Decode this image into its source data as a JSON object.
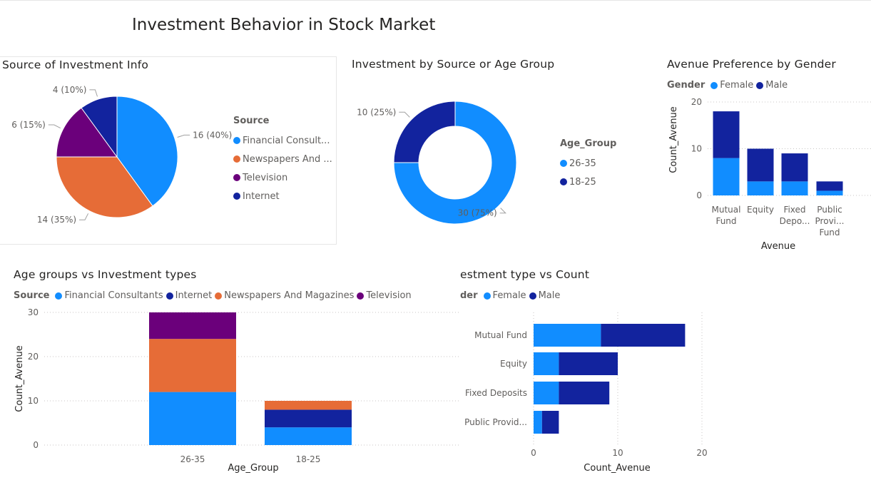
{
  "report": {
    "title": "Investment Behavior in Stock Market"
  },
  "colors": {
    "light_blue": "#118DFF",
    "dark_blue": "#12239E",
    "orange": "#E66C37",
    "purple": "#6B007B"
  },
  "chart_data": [
    {
      "id": "source_pie",
      "type": "pie",
      "title": "Source of Investment Info",
      "legend_title": "Source",
      "legend_labels": [
        "Financial Consult...",
        "Newspapers And ...",
        "Television",
        "Internet"
      ],
      "slices": [
        {
          "name": "Financial Consultants",
          "value": 16,
          "label": "16 (40%)",
          "color": "#118DFF"
        },
        {
          "name": "Newspapers And Magazines",
          "value": 14,
          "label": "14 (35%)",
          "color": "#E66C37"
        },
        {
          "name": "Television",
          "value": 6,
          "label": "6 (15%)",
          "color": "#6B007B"
        },
        {
          "name": "Internet",
          "value": 4,
          "label": "4 (10%)",
          "color": "#12239E"
        }
      ]
    },
    {
      "id": "age_donut",
      "type": "pie",
      "title": "Investment by Source or Age Group",
      "legend_title": "Age_Group",
      "slices": [
        {
          "name": "26-35",
          "value": 30,
          "label": "30 (75%)",
          "color": "#118DFF"
        },
        {
          "name": "18-25",
          "value": 10,
          "label": "10 (25%)",
          "color": "#12239E"
        }
      ]
    },
    {
      "id": "avenue_gender",
      "type": "bar",
      "stacked": true,
      "title": "Avenue Preference by Gender",
      "legend_title": "Gender",
      "xlabel": "Avenue",
      "ylabel": "Count_Avenue",
      "ylim": [
        0,
        20
      ],
      "yticks": [
        0,
        10,
        20
      ],
      "categories": [
        "Mutual Fund",
        "Equity",
        "Fixed Deposits",
        "Public Provident Fund"
      ],
      "category_tick_lines": [
        [
          "Mutual",
          "Fund"
        ],
        [
          "Equity"
        ],
        [
          "Fixed",
          "Depo..."
        ],
        [
          "Public",
          "Provi...",
          "Fund"
        ]
      ],
      "series": [
        {
          "name": "Female",
          "color": "#118DFF",
          "values": [
            8,
            3,
            3,
            1
          ]
        },
        {
          "name": "Male",
          "color": "#12239E",
          "values": [
            10,
            7,
            6,
            2
          ]
        }
      ]
    },
    {
      "id": "age_investment",
      "type": "bar",
      "stacked": true,
      "title": "Age groups vs Investment types",
      "legend_title": "Source",
      "xlabel": "Age_Group",
      "ylabel": "Count_Avenue",
      "ylim": [
        0,
        30
      ],
      "yticks": [
        0,
        10,
        20,
        30
      ],
      "categories": [
        "26-35",
        "18-25"
      ],
      "series": [
        {
          "name": "Financial Consultants",
          "color": "#118DFF",
          "values": [
            12,
            4
          ]
        },
        {
          "name": "Internet",
          "color": "#12239E",
          "values": [
            0,
            4
          ]
        },
        {
          "name": "Newspapers And Magazines",
          "color": "#E66C37",
          "values": [
            12,
            2
          ]
        },
        {
          "name": "Television",
          "color": "#6B007B",
          "values": [
            6,
            0
          ]
        }
      ]
    },
    {
      "id": "type_count",
      "type": "bar",
      "orientation": "horizontal",
      "stacked": true,
      "title": "estment type vs Count",
      "legend_title": "der",
      "xlabel": "Count_Avenue",
      "xlim": [
        0,
        20
      ],
      "xticks": [
        0,
        10,
        20
      ],
      "categories": [
        "Mutual Fund",
        "Equity",
        "Fixed Deposits",
        "Public Provid..."
      ],
      "series": [
        {
          "name": "Female",
          "color": "#118DFF",
          "values": [
            8,
            3,
            3,
            1
          ]
        },
        {
          "name": "Male",
          "color": "#12239E",
          "values": [
            10,
            7,
            6,
            2
          ]
        }
      ]
    }
  ]
}
